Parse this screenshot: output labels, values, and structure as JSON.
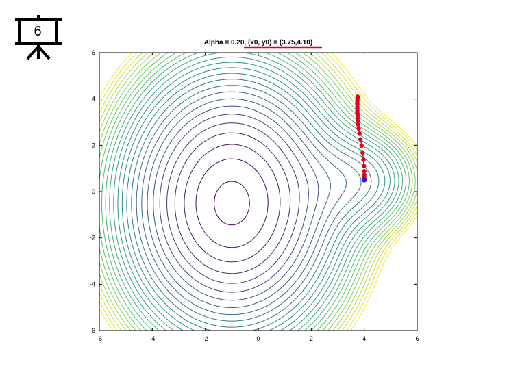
{
  "slide_badge": {
    "number": "6",
    "icon": "presentation-board-icon"
  },
  "chart_data": {
    "type": "contour",
    "title": "Alpha = 0.20, (x0, y0) = (3.75,4.10)",
    "xlabel": "",
    "ylabel": "",
    "xlim": [
      -6,
      6
    ],
    "ylim": [
      -6,
      6
    ],
    "xticks": [
      -6,
      -4,
      -2,
      0,
      2,
      4,
      6
    ],
    "yticks": [
      -6,
      -4,
      -2,
      0,
      2,
      4,
      6
    ],
    "grid": false,
    "colormap": [
      "#440154",
      "#3b528b",
      "#21918c",
      "#5ec962",
      "#fde725"
    ],
    "minima": [
      {
        "x": -1.0,
        "y": -0.5
      },
      {
        "x": 4.0,
        "y": 0.5
      }
    ],
    "trajectory": {
      "color": "#e0001b",
      "points": [
        [
          3.75,
          4.1
        ],
        [
          3.75,
          4.02
        ],
        [
          3.74,
          3.93
        ],
        [
          3.74,
          3.85
        ],
        [
          3.74,
          3.76
        ],
        [
          3.74,
          3.67
        ],
        [
          3.74,
          3.58
        ],
        [
          3.74,
          3.49
        ],
        [
          3.74,
          3.4
        ],
        [
          3.75,
          3.29
        ],
        [
          3.75,
          3.18
        ],
        [
          3.76,
          3.05
        ],
        [
          3.77,
          2.9
        ],
        [
          3.79,
          2.72
        ],
        [
          3.82,
          2.5
        ],
        [
          3.86,
          2.25
        ],
        [
          3.9,
          1.98
        ],
        [
          3.94,
          1.68
        ],
        [
          3.97,
          1.38
        ],
        [
          3.99,
          1.1
        ],
        [
          4.0,
          0.88
        ],
        [
          4.0,
          0.72
        ],
        [
          4.0,
          0.62
        ],
        [
          4.0,
          0.56
        ]
      ]
    },
    "final_point": {
      "x": 4.0,
      "y": 0.5,
      "color": "#1a1aff"
    },
    "title_underline": {
      "text": "(x0, y0) = (3.75,4.10)",
      "color": "#e0001b"
    }
  }
}
